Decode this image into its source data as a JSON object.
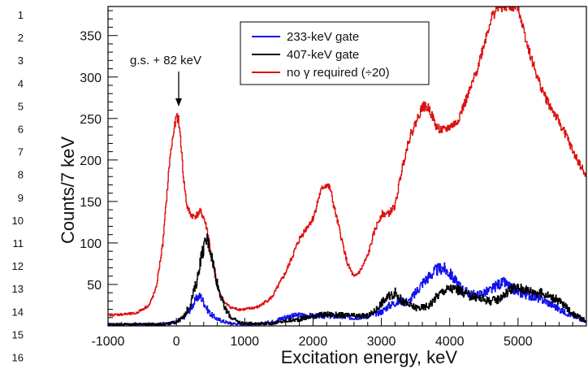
{
  "line_numbers": [
    "1",
    "2",
    "3",
    "4",
    "5",
    "6",
    "7",
    "8",
    "9",
    "10",
    "11",
    "12",
    "13",
    "14",
    "15",
    "16"
  ],
  "chart_data": {
    "type": "line",
    "xlabel": "Excitation energy, keV",
    "ylabel": "Counts/7 keV",
    "xlim": [
      -1000,
      6000
    ],
    "ylim": [
      0,
      385
    ],
    "x_ticks": [
      -1000,
      0,
      1000,
      2000,
      3000,
      4000,
      5000
    ],
    "x_tick_labels": [
      "-1000",
      "0",
      "1000",
      "2000",
      "3000",
      "4000",
      "5000"
    ],
    "y_ticks": [
      50,
      100,
      150,
      200,
      250,
      300,
      350
    ],
    "y_tick_labels": [
      "50",
      "100",
      "150",
      "200",
      "250",
      "300",
      "350"
    ],
    "grid": false,
    "legend_position": "top-center",
    "annotation": {
      "text": "g.s. + 82 keV",
      "x": 0,
      "y": 255
    },
    "series": [
      {
        "name": "233-keV gate",
        "color": "#1010ee",
        "x": [
          -1000,
          -400,
          -100,
          0,
          100,
          200,
          300,
          350,
          400,
          450,
          500,
          600,
          700,
          800,
          1000,
          1200,
          1400,
          1600,
          1800,
          2000,
          2200,
          2400,
          2600,
          2800,
          3000,
          3100,
          3200,
          3300,
          3400,
          3500,
          3600,
          3700,
          3800,
          3900,
          4000,
          4100,
          4200,
          4300,
          4400,
          4500,
          4600,
          4700,
          4800,
          4900,
          5000,
          5100,
          5200,
          5400,
          5600,
          5800,
          5990
        ],
        "y": [
          2,
          2,
          3,
          5,
          10,
          20,
          34,
          36,
          28,
          20,
          14,
          8,
          5,
          3,
          2,
          2,
          5,
          11,
          13,
          12,
          12,
          11,
          10,
          12,
          17,
          24,
          28,
          30,
          29,
          40,
          52,
          60,
          67,
          70,
          63,
          52,
          43,
          38,
          37,
          40,
          43,
          50,
          52,
          45,
          41,
          38,
          36,
          30,
          20,
          12,
          6
        ]
      },
      {
        "name": "407-keV gate",
        "color": "#000000",
        "x": [
          -1000,
          -200,
          -100,
          0,
          100,
          200,
          300,
          350,
          400,
          450,
          500,
          550,
          600,
          700,
          800,
          900,
          1000,
          1400,
          1600,
          1800,
          2000,
          2200,
          2400,
          2600,
          2800,
          2900,
          3000,
          3100,
          3200,
          3300,
          3400,
          3500,
          3600,
          3700,
          3800,
          3900,
          4000,
          4100,
          4200,
          4300,
          4400,
          4500,
          4600,
          4700,
          4800,
          4900,
          5000,
          5100,
          5200,
          5400,
          5600,
          5800,
          5990
        ],
        "y": [
          2,
          2,
          3,
          5,
          10,
          26,
          55,
          80,
          95,
          105,
          90,
          70,
          50,
          22,
          10,
          5,
          3,
          3,
          6,
          8,
          12,
          14,
          13,
          12,
          12,
          18,
          28,
          35,
          40,
          30,
          25,
          22,
          22,
          25,
          35,
          42,
          45,
          44,
          40,
          36,
          34,
          32,
          30,
          32,
          38,
          45,
          46,
          44,
          42,
          38,
          30,
          15,
          6
        ]
      },
      {
        "name": "no γ required (÷20)",
        "color": "#dd1010",
        "x": [
          -1000,
          -600,
          -400,
          -300,
          -200,
          -150,
          -100,
          -50,
          0,
          30,
          60,
          100,
          150,
          200,
          250,
          300,
          350,
          400,
          450,
          500,
          550,
          600,
          700,
          800,
          900,
          1000,
          1200,
          1400,
          1600,
          1800,
          1900,
          2000,
          2100,
          2150,
          2200,
          2250,
          2300,
          2400,
          2500,
          2600,
          2700,
          2800,
          2900,
          3000,
          3100,
          3200,
          3300,
          3400,
          3500,
          3600,
          3700,
          3800,
          3900,
          4000,
          4100,
          4200,
          4300,
          4400,
          4500,
          4600,
          4700,
          4800,
          4900,
          5000,
          5100,
          5200,
          5300,
          5400,
          5500,
          5600,
          5700,
          5800,
          5900,
          5990
        ],
        "y": [
          13,
          15,
          25,
          45,
          100,
          150,
          200,
          230,
          253,
          248,
          225,
          180,
          145,
          135,
          132,
          134,
          138,
          130,
          115,
          90,
          65,
          45,
          28,
          22,
          20,
          20,
          23,
          35,
          65,
          105,
          118,
          130,
          160,
          168,
          170,
          165,
          145,
          110,
          75,
          58,
          68,
          85,
          115,
          135,
          135,
          145,
          190,
          225,
          245,
          265,
          262,
          240,
          235,
          240,
          245,
          265,
          285,
          310,
          340,
          370,
          385,
          385,
          385,
          385,
          350,
          320,
          295,
          275,
          260,
          245,
          230,
          210,
          195,
          180
        ]
      }
    ]
  }
}
